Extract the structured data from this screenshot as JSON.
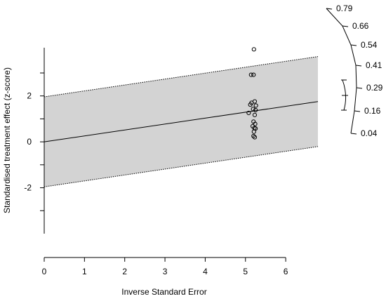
{
  "chart_data": {
    "type": "scatter",
    "title": "",
    "xlabel": "Inverse Standard Error",
    "ylabel": "Standardised treatment effect (z-score)",
    "xlim": [
      0,
      6.8
    ],
    "ylim": [
      -4.0,
      4.1
    ],
    "x_ticks": [
      0,
      1,
      2,
      3,
      4,
      5,
      6
    ],
    "x_tick_labels": [
      "0",
      "1",
      "2",
      "3",
      "4",
      "5",
      "6"
    ],
    "y_ticks": [
      -2,
      0,
      2
    ],
    "y_tick_labels": [
      "-2",
      "0",
      "2"
    ],
    "grid": false,
    "legend": "none",
    "regression_line": {
      "intercept": 0.0,
      "slope": 0.258
    },
    "confidence_band": {
      "half_width": 1.96,
      "fill": "#d3d3d3"
    },
    "points": [
      {
        "x": 5.21,
        "y": 4.03
      },
      {
        "x": 5.14,
        "y": 2.92
      },
      {
        "x": 5.2,
        "y": 2.92
      },
      {
        "x": 5.15,
        "y": 1.7
      },
      {
        "x": 5.23,
        "y": 1.76
      },
      {
        "x": 5.12,
        "y": 1.62
      },
      {
        "x": 5.26,
        "y": 1.58
      },
      {
        "x": 5.19,
        "y": 1.43
      },
      {
        "x": 5.25,
        "y": 1.38
      },
      {
        "x": 5.08,
        "y": 1.26
      },
      {
        "x": 5.23,
        "y": 1.17
      },
      {
        "x": 5.2,
        "y": 0.88
      },
      {
        "x": 5.24,
        "y": 0.78
      },
      {
        "x": 5.18,
        "y": 0.68
      },
      {
        "x": 5.22,
        "y": 0.6
      },
      {
        "x": 5.25,
        "y": 0.58
      },
      {
        "x": 5.21,
        "y": 0.44
      },
      {
        "x": 5.2,
        "y": 0.25
      },
      {
        "x": 5.23,
        "y": 0.2
      }
    ],
    "secondary_axis": {
      "tick_labels": [
        "0.79",
        "0.66",
        "0.54",
        "0.41",
        "0.29",
        "0.16",
        "0.04"
      ],
      "marked_range": [
        "0.16",
        "0.29"
      ]
    }
  }
}
